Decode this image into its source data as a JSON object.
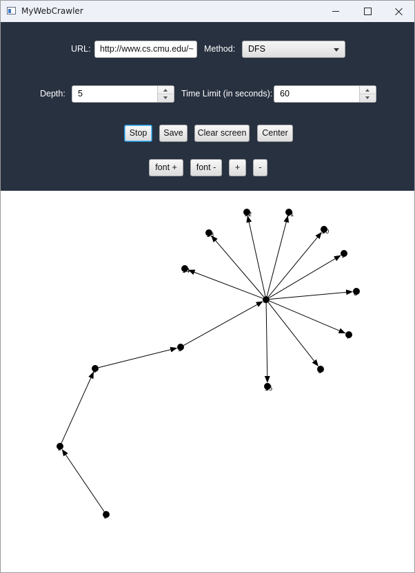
{
  "window": {
    "title": "MyWebCrawler",
    "icon": "app-window-icon"
  },
  "toolbar": {
    "url_label": "URL:",
    "url_value": "http://www.cs.cmu.edu/~",
    "method_label": "Method:",
    "method_value": "DFS",
    "depth_label": "Depth:",
    "depth_value": "5",
    "time_label": "Time Limit (in seconds):",
    "time_value": "60",
    "buttons": {
      "stop": "Stop",
      "save": "Save",
      "clear": "Clear screen",
      "center": "Center",
      "font_plus": "font +",
      "font_minus": "font -",
      "zoom_in": "+",
      "zoom_out": "-"
    }
  },
  "colors": {
    "toolbar_bg": "#283140",
    "focus_border": "#1f8fd6",
    "node": "#000000"
  },
  "graph": {
    "nodes": [
      {
        "id": "0",
        "label": "0"
      },
      {
        "id": "1",
        "label": "1"
      },
      {
        "id": "2",
        "label": "2"
      },
      {
        "id": "3",
        "label": "3"
      },
      {
        "id": "4",
        "label": "4"
      },
      {
        "id": "5",
        "label": "5"
      },
      {
        "id": "6",
        "label": "6"
      },
      {
        "id": "7",
        "label": "7"
      },
      {
        "id": "8",
        "label": "8"
      },
      {
        "id": "9",
        "label": "9"
      },
      {
        "id": "10",
        "label": "10"
      },
      {
        "id": "11",
        "label": "11"
      },
      {
        "id": "12",
        "label": "12"
      },
      {
        "id": "13",
        "label": "13"
      },
      {
        "id": "14",
        "label": "14"
      },
      {
        "id": "15",
        "label": "15"
      }
    ],
    "edges": [
      [
        "0",
        "1"
      ],
      [
        "1",
        "2"
      ],
      [
        "2",
        "3"
      ],
      [
        "3",
        "4"
      ],
      [
        "4",
        "5"
      ],
      [
        "4",
        "6"
      ],
      [
        "4",
        "7"
      ],
      [
        "4",
        "8"
      ],
      [
        "4",
        "9"
      ],
      [
        "4",
        "10"
      ],
      [
        "4",
        "11"
      ],
      [
        "4",
        "12"
      ],
      [
        "4",
        "13"
      ],
      [
        "4",
        "14"
      ],
      [
        "4",
        "15"
      ]
    ]
  }
}
